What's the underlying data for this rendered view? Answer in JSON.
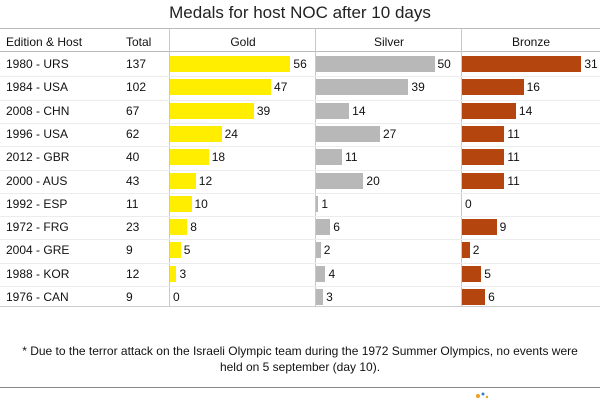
{
  "chart_data": {
    "type": "bar",
    "title": "Medals for host NOC after 10 days",
    "columns": [
      "Edition & Host",
      "Total",
      "Gold",
      "Silver",
      "Bronze"
    ],
    "categories": [
      "1980 - URS",
      "1984 - USA",
      "2008 - CHN",
      "1996 - USA",
      "2012 - GBR",
      "2000 - AUS",
      "1992 - ESP",
      "1972 - FRG",
      "2004 - GRE",
      "1988 - KOR",
      "1976 - CAN"
    ],
    "totals": [
      137,
      102,
      67,
      62,
      40,
      43,
      11,
      23,
      9,
      12,
      9
    ],
    "series": [
      {
        "name": "Gold",
        "values": [
          56,
          47,
          39,
          24,
          18,
          12,
          10,
          8,
          5,
          3,
          0
        ],
        "color": "#ffee00"
      },
      {
        "name": "Silver",
        "values": [
          50,
          39,
          14,
          27,
          11,
          20,
          1,
          6,
          2,
          4,
          3
        ],
        "color": "#b8b8b8"
      },
      {
        "name": "Bronze",
        "values": [
          31,
          16,
          14,
          11,
          11,
          11,
          0,
          9,
          2,
          5,
          6
        ],
        "color": "#b5450f"
      }
    ],
    "footnote": "* Due to the terror attack on the Israeli Olympic team during the 1972 Summer Olympics, no events were held on 5 september (day 10).",
    "grid": false,
    "legend": "none"
  }
}
